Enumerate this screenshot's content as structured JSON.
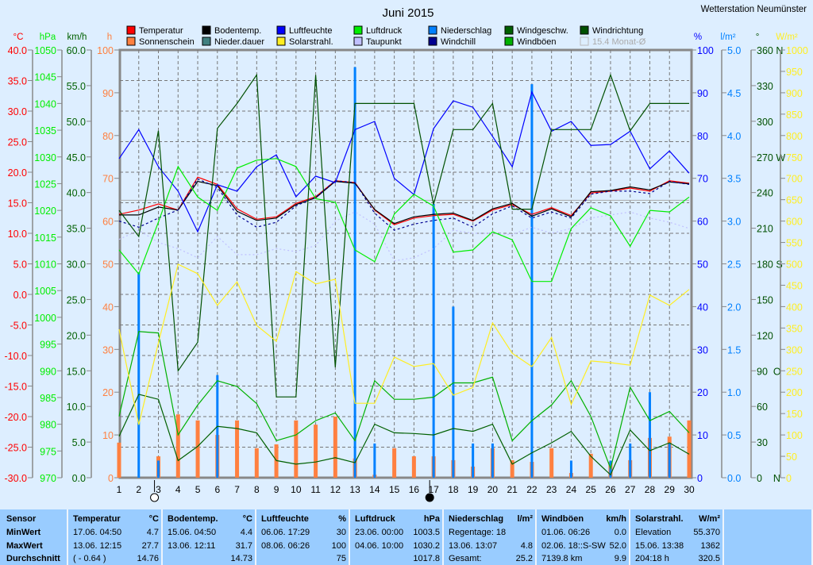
{
  "station": "Wetterstation Neumünster",
  "chart_data": {
    "type": "line",
    "title": "Juni 2015",
    "x": [
      1,
      2,
      3,
      4,
      5,
      6,
      7,
      8,
      9,
      10,
      11,
      12,
      13,
      14,
      15,
      16,
      17,
      18,
      19,
      20,
      21,
      22,
      23,
      24,
      25,
      26,
      27,
      28,
      29,
      30
    ],
    "x_tick_labels": [
      "1",
      "2",
      "3",
      "4",
      "5",
      "6",
      "7",
      "8",
      "9",
      "10",
      "11",
      "12",
      "13",
      "14",
      "15",
      "16",
      "17",
      "18",
      "19",
      "20",
      "21",
      "22",
      "23",
      "24",
      "25",
      "26",
      "27",
      "28",
      "29",
      "30"
    ],
    "grid": true,
    "legend_placement": "top",
    "legend": [
      {
        "label": "Temperatur",
        "color": "#ff0000"
      },
      {
        "label": "Bodentemp.",
        "color": "#000000"
      },
      {
        "label": "Luftfeuchte",
        "color": "#0000ff"
      },
      {
        "label": "Luftdruck",
        "color": "#00ee00"
      },
      {
        "label": "Niederschlag",
        "color": "#0080ff"
      },
      {
        "label": "Windgeschw.",
        "color": "#006000"
      },
      {
        "label": "Windrichtung",
        "color": "#005000"
      },
      {
        "label": "Sonnenschein",
        "color": "#ff8040"
      },
      {
        "label": "Nieder.dauer",
        "color": "#408080"
      },
      {
        "label": "Solarstrahl.",
        "color": "#ffee22"
      },
      {
        "label": "Taupunkt",
        "color": "#c0c0ff"
      },
      {
        "label": "Windchill",
        "color": "#000090"
      },
      {
        "label": "Windböen",
        "color": "#00b000"
      },
      {
        "label": "15.4 Monat-Ø",
        "color": "#b0b0b0",
        "unchecked": true
      }
    ],
    "axes": {
      "temp": {
        "unit": "°C",
        "color": "#ff0000",
        "range": [
          -30,
          40
        ],
        "ticks": [
          "40.0",
          "35.0",
          "30.0",
          "25.0",
          "20.0",
          "15.0",
          "10.0",
          "5.0",
          "0.0",
          "-5.0",
          "-10.0",
          "-15.0",
          "-20.0",
          "-25.0",
          "-30.0"
        ]
      },
      "pressure": {
        "unit": "hPa",
        "color": "#00ee00",
        "range": [
          970,
          1050
        ],
        "ticks": [
          "1050",
          "1045",
          "1040",
          "1035",
          "1030",
          "1025",
          "1020",
          "1015",
          "1010",
          "1005",
          "1000",
          "995",
          "990",
          "985",
          "980",
          "975",
          "970"
        ]
      },
      "wind": {
        "unit": "km/h",
        "color": "#006000",
        "range": [
          0,
          60
        ],
        "ticks": [
          "60.0",
          "55.0",
          "50.0",
          "45.0",
          "40.0",
          "35.0",
          "30.0",
          "25.0",
          "20.0",
          "15.0",
          "10.0",
          "5.0",
          "0.0"
        ]
      },
      "sun": {
        "unit": "h",
        "color": "#ff8040",
        "range": [
          0,
          100
        ],
        "ticks": [
          "100",
          "90",
          "80",
          "70",
          "60",
          "50",
          "40",
          "30",
          "20",
          "10",
          "0"
        ]
      },
      "humidity": {
        "unit": "%",
        "color": "#0000ff",
        "range": [
          0,
          100
        ],
        "ticks": [
          "100",
          "90",
          "80",
          "70",
          "60",
          "50",
          "40",
          "30",
          "20",
          "10",
          "0"
        ]
      },
      "rain": {
        "unit": "l/m²",
        "color": "#0080ff",
        "range": [
          0,
          5
        ],
        "ticks": [
          "5.0",
          "4.5",
          "4.0",
          "3.5",
          "3.0",
          "2.5",
          "2.0",
          "1.5",
          "1.0",
          "0.5",
          "0.0"
        ]
      },
      "direction": {
        "unit": "°",
        "color": "#005000",
        "range": [
          0,
          360
        ],
        "ticks": [
          "360 N",
          "330",
          "300",
          "270 W",
          "240",
          "210",
          "180 S",
          "150",
          "120",
          "90  O",
          "60",
          "30",
          "0    N"
        ]
      },
      "solar": {
        "unit": "W/m²",
        "color": "#ffee22",
        "range": [
          0,
          1000
        ],
        "ticks": [
          "1000",
          "950",
          "900",
          "850",
          "800",
          "750",
          "700",
          "650",
          "600",
          "550",
          "500",
          "450",
          "400",
          "350",
          "300",
          "250",
          "200",
          "150",
          "100",
          "50",
          "0"
        ]
      }
    },
    "monthly_average_temp": 15.4,
    "series": [
      {
        "name": "Temperatur",
        "axis": "temp",
        "color": "#ff0000",
        "values": [
          13.1,
          13.8,
          14.8,
          13.8,
          19.2,
          18.0,
          14.0,
          12.3,
          12.7,
          14.9,
          16.0,
          18.6,
          18.3,
          13.8,
          11.4,
          12.5,
          12.9,
          13.1,
          12.0,
          13.8,
          14.7,
          13.1,
          14.2,
          12.9,
          16.6,
          16.9,
          17.4,
          16.9,
          18.6,
          18.2
        ]
      },
      {
        "name": "Bodentemp.",
        "axis": "temp",
        "color": "#000000",
        "values": [
          13.0,
          13.0,
          14.3,
          13.8,
          18.5,
          17.8,
          13.6,
          12.1,
          12.5,
          14.7,
          15.8,
          18.5,
          18.2,
          13.9,
          11.6,
          12.7,
          13.1,
          13.3,
          12.1,
          14.0,
          14.9,
          12.8,
          14.0,
          12.7,
          16.8,
          17.0,
          17.6,
          17.1,
          18.4,
          18.1
        ]
      },
      {
        "name": "Windchill",
        "axis": "temp",
        "color": "#000090",
        "dash": "3,3",
        "values": [
          12.0,
          11.0,
          12.5,
          13.8,
          18.9,
          17.5,
          13.0,
          11.0,
          11.8,
          14.5,
          15.9,
          18.6,
          18.3,
          13.3,
          10.5,
          11.5,
          12.1,
          12.5,
          11.0,
          13.2,
          14.5,
          12.5,
          13.5,
          12.5,
          16.4,
          16.9,
          16.9,
          16.5,
          18.5,
          18.0
        ]
      },
      {
        "name": "Taupunkt",
        "axis": "temp",
        "color": "#c0c0ff",
        "dash": "2,3",
        "values": [
          9.0,
          10.5,
          8.5,
          7.5,
          6.0,
          9.5,
          6.5,
          6.5,
          7.5,
          7.0,
          8.0,
          12.0,
          13.5,
          11.5,
          5.5,
          6.0,
          7.5,
          10.5,
          10.0,
          10.0,
          9.8,
          11.0,
          10.0,
          10.8,
          12.5,
          13.0,
          13.5,
          12.5,
          11.8,
          10.8
        ]
      },
      {
        "name": "Luftfeuchte",
        "axis": "humidity",
        "color": "#0000ff",
        "values": [
          74.6,
          81.4,
          72.7,
          67.0,
          57.5,
          68.5,
          67.0,
          72.7,
          75.5,
          65.7,
          70.5,
          69.0,
          81.4,
          83.3,
          70.0,
          66.2,
          81.6,
          88.1,
          86.6,
          79.8,
          72.7,
          90.2,
          81.0,
          83.3,
          77.7,
          77.9,
          81.0,
          72.2,
          76.4,
          71.2
        ]
      },
      {
        "name": "Luftdruck",
        "axis": "pressure",
        "color": "#00ee00",
        "values": [
          1012.6,
          1008.1,
          1017.8,
          1028.2,
          1022.5,
          1020.0,
          1027.9,
          1029.4,
          1029.7,
          1028.2,
          1022.2,
          1021.5,
          1012.6,
          1010.4,
          1019.3,
          1023.0,
          1020.8,
          1012.2,
          1012.6,
          1016.0,
          1014.5,
          1006.7,
          1006.7,
          1016.6,
          1020.5,
          1019.0,
          1013.3,
          1020.0,
          1019.7,
          1022.5
        ]
      },
      {
        "name": "Windrichtung",
        "axis": "direction",
        "color": "#005000",
        "values": [
          225,
          203,
          292,
          90,
          114,
          294,
          315,
          339,
          68,
          68,
          339,
          93,
          315,
          315,
          315,
          315,
          230,
          293,
          293,
          315,
          226,
          226,
          293,
          293,
          293,
          339,
          292,
          315,
          315,
          315
        ]
      },
      {
        "name": "Windböen",
        "axis": "wind",
        "color": "#00b000",
        "values": [
          8.6,
          20.5,
          20.3,
          6.0,
          10.2,
          13.6,
          12.8,
          10.4,
          5.2,
          6.0,
          8.0,
          9.1,
          5.2,
          13.6,
          11.0,
          11.0,
          11.3,
          13.3,
          13.3,
          14.1,
          5.2,
          8.0,
          10.2,
          13.6,
          8.6,
          1.3,
          12.7,
          8.0,
          9.3,
          6.3
        ]
      },
      {
        "name": "Windgeschw.",
        "axis": "wind",
        "color": "#006000",
        "values": [
          5.8,
          11.7,
          11.0,
          2.4,
          4.4,
          7.2,
          6.9,
          6.3,
          2.4,
          1.9,
          2.2,
          2.8,
          2.1,
          7.5,
          6.3,
          6.2,
          6.0,
          6.9,
          6.5,
          7.5,
          1.9,
          3.5,
          4.9,
          6.5,
          3.0,
          0.4,
          6.7,
          3.8,
          4.9,
          3.3
        ]
      },
      {
        "name": "Solarstrahl.",
        "axis": "solar",
        "color": "#ffee22",
        "values": [
          347,
          124,
          315,
          499,
          477,
          403,
          458,
          356,
          319,
          482,
          453,
          464,
          174,
          174,
          282,
          260,
          267,
          193,
          211,
          362,
          291,
          260,
          328,
          171,
          273,
          269,
          263,
          427,
          403,
          440
        ]
      }
    ],
    "bars": [
      {
        "name": "Sonnenschein",
        "axis": "sun",
        "color": "#ff8040",
        "values": [
          8.2,
          0,
          5.0,
          14.8,
          13.4,
          10.0,
          13.4,
          6.9,
          7.8,
          13.4,
          12.4,
          14.3,
          4.5,
          0.7,
          6.9,
          5.0,
          5.0,
          4.1,
          2.6,
          6.9,
          4.1,
          3.7,
          6.9,
          1.1,
          5.6,
          3.7,
          4.1,
          9.3,
          9.6,
          13.4
        ]
      },
      {
        "name": "Niederschlag",
        "axis": "rain",
        "color": "#0080ff",
        "values": [
          0,
          2.4,
          0.2,
          0,
          0,
          1.2,
          0,
          0,
          0,
          0,
          0,
          0,
          4.8,
          0.4,
          0,
          0,
          3.2,
          2.0,
          0.4,
          0.4,
          0,
          4.6,
          0,
          0.2,
          0,
          0.2,
          0.4,
          1.0,
          0.4,
          0
        ]
      }
    ],
    "moon_phases": [
      {
        "day": 2.8,
        "phase": "full"
      },
      {
        "day": 16.8,
        "phase": "new"
      }
    ]
  },
  "stats_table": {
    "row_labels": [
      "Sensor",
      "MinWert",
      "MaxWert",
      "Durchschnitt"
    ],
    "columns": [
      {
        "title": "Temperatur",
        "unit": "°C",
        "rows": [
          [
            "17.06.  04:50",
            "4.7"
          ],
          [
            "13.06.  12:15",
            "27.7"
          ],
          [
            "( - 0.64 )",
            "14.76"
          ]
        ]
      },
      {
        "title": "Bodentemp.",
        "unit": "°C",
        "rows": [
          [
            "15.06.  04:50",
            "4.4"
          ],
          [
            "13.06.  12:11",
            "31.7"
          ],
          [
            "",
            "14.73"
          ]
        ]
      },
      {
        "title": "Luftfeuchte",
        "unit": "%",
        "rows": [
          [
            "06.06.  17:29",
            "30"
          ],
          [
            "08.06.  06:26",
            "100"
          ],
          [
            "",
            "75"
          ]
        ]
      },
      {
        "title": "Luftdruck",
        "unit": "hPa",
        "rows": [
          [
            "23.06.  00:00",
            "1003.5"
          ],
          [
            "04.06.  10:00",
            "1030.2"
          ],
          [
            "",
            "1017.8"
          ]
        ]
      },
      {
        "title": "Niederschlag",
        "unit": "l/m²",
        "rows": [
          [
            "Regentage: 18",
            ""
          ],
          [
            "13.06.  13:07",
            "4.8"
          ],
          [
            "Gesamt:",
            "25.2"
          ]
        ]
      },
      {
        "title": "Windböen",
        "unit": "km/h",
        "rows": [
          [
            "01.06.  06:26",
            "0.0"
          ],
          [
            "02.06.  18::S-SW",
            "52.0"
          ],
          [
            "7139.8 km",
            "9.9"
          ]
        ]
      },
      {
        "title": "Solarstrahl.",
        "unit": "W/m²",
        "rows": [
          [
            "Elevation",
            "55.370"
          ],
          [
            "15.06.  13:38",
            "1362"
          ],
          [
            "204:18 h",
            "320.5"
          ]
        ]
      }
    ]
  }
}
